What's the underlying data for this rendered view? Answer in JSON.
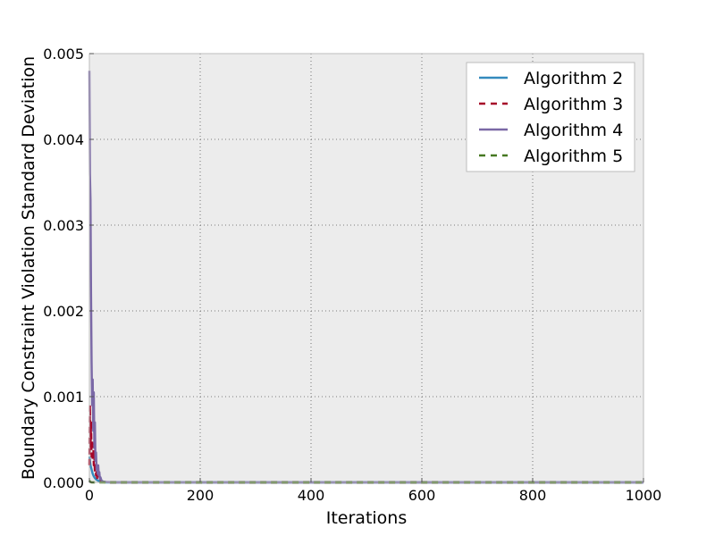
{
  "chart_data": {
    "type": "line",
    "title": "",
    "xlabel": "Iterations",
    "ylabel": "Boundary Constraint Violation Standard Deviation",
    "xlim": [
      0,
      1000
    ],
    "ylim": [
      0,
      0.005
    ],
    "x_ticks": [
      0,
      200,
      400,
      600,
      800,
      1000
    ],
    "x_tick_labels": [
      "0",
      "200",
      "400",
      "600",
      "800",
      "1000"
    ],
    "y_ticks": [
      0,
      0.001,
      0.002,
      0.003,
      0.004,
      0.005
    ],
    "y_tick_labels": [
      "0.000",
      "0.001",
      "0.002",
      "0.003",
      "0.004",
      "0.005"
    ],
    "grid": true,
    "legend_position": "top-right",
    "series": [
      {
        "name": "Algorithm 2",
        "color": "#348abd",
        "dash": "solid",
        "x": [
          0,
          1,
          2,
          4,
          6,
          8,
          10,
          13,
          16,
          20,
          25,
          30,
          1000
        ],
        "y": [
          0.0003,
          0.00025,
          0.0002,
          0.00015,
          0.0001,
          7e-05,
          5e-05,
          3e-05,
          2e-05,
          1e-05,
          5e-06,
          0,
          0
        ]
      },
      {
        "name": "Algorithm 3",
        "color": "#a60628",
        "dash": "dashed",
        "x": [
          0,
          1,
          2,
          3,
          4,
          5,
          6,
          7,
          8,
          9,
          10,
          11,
          12,
          13,
          14,
          15,
          17,
          19,
          22,
          25,
          30,
          1000
        ],
        "y": [
          0.0002,
          0.0009,
          0.0004,
          0.0007,
          0.0003,
          0.0005,
          0.00025,
          0.00045,
          0.0002,
          0.0003,
          0.00012,
          0.0002,
          8e-05,
          0.00012,
          5e-05,
          8e-05,
          3e-05,
          4e-05,
          1e-05,
          5e-06,
          0,
          0
        ]
      },
      {
        "name": "Algorithm 4",
        "color": "#7a68a6",
        "dash": "solid",
        "x": [
          0,
          1,
          2,
          3,
          4,
          5,
          6,
          7,
          8,
          9,
          10,
          11,
          12,
          13,
          14,
          15,
          16,
          17,
          18,
          19,
          20,
          22,
          25,
          30,
          40,
          1000
        ],
        "y": [
          0.0048,
          0.0036,
          0.0033,
          0.0022,
          0.0014,
          0.0009,
          0.0012,
          0.0006,
          0.00105,
          0.0004,
          0.0007,
          0.00025,
          0.00035,
          0.00015,
          0.0002,
          0.0001,
          0.0002,
          8e-05,
          0.00012,
          4e-05,
          6e-05,
          2e-05,
          1e-05,
          5e-06,
          0,
          0
        ]
      },
      {
        "name": "Algorithm 5",
        "color": "#467821",
        "dash": "dashed",
        "x": [
          0,
          1,
          2,
          3,
          4,
          5,
          10,
          1000
        ],
        "y": [
          2e-05,
          1e-05,
          5e-06,
          2e-06,
          0,
          0,
          0,
          0
        ]
      }
    ]
  }
}
